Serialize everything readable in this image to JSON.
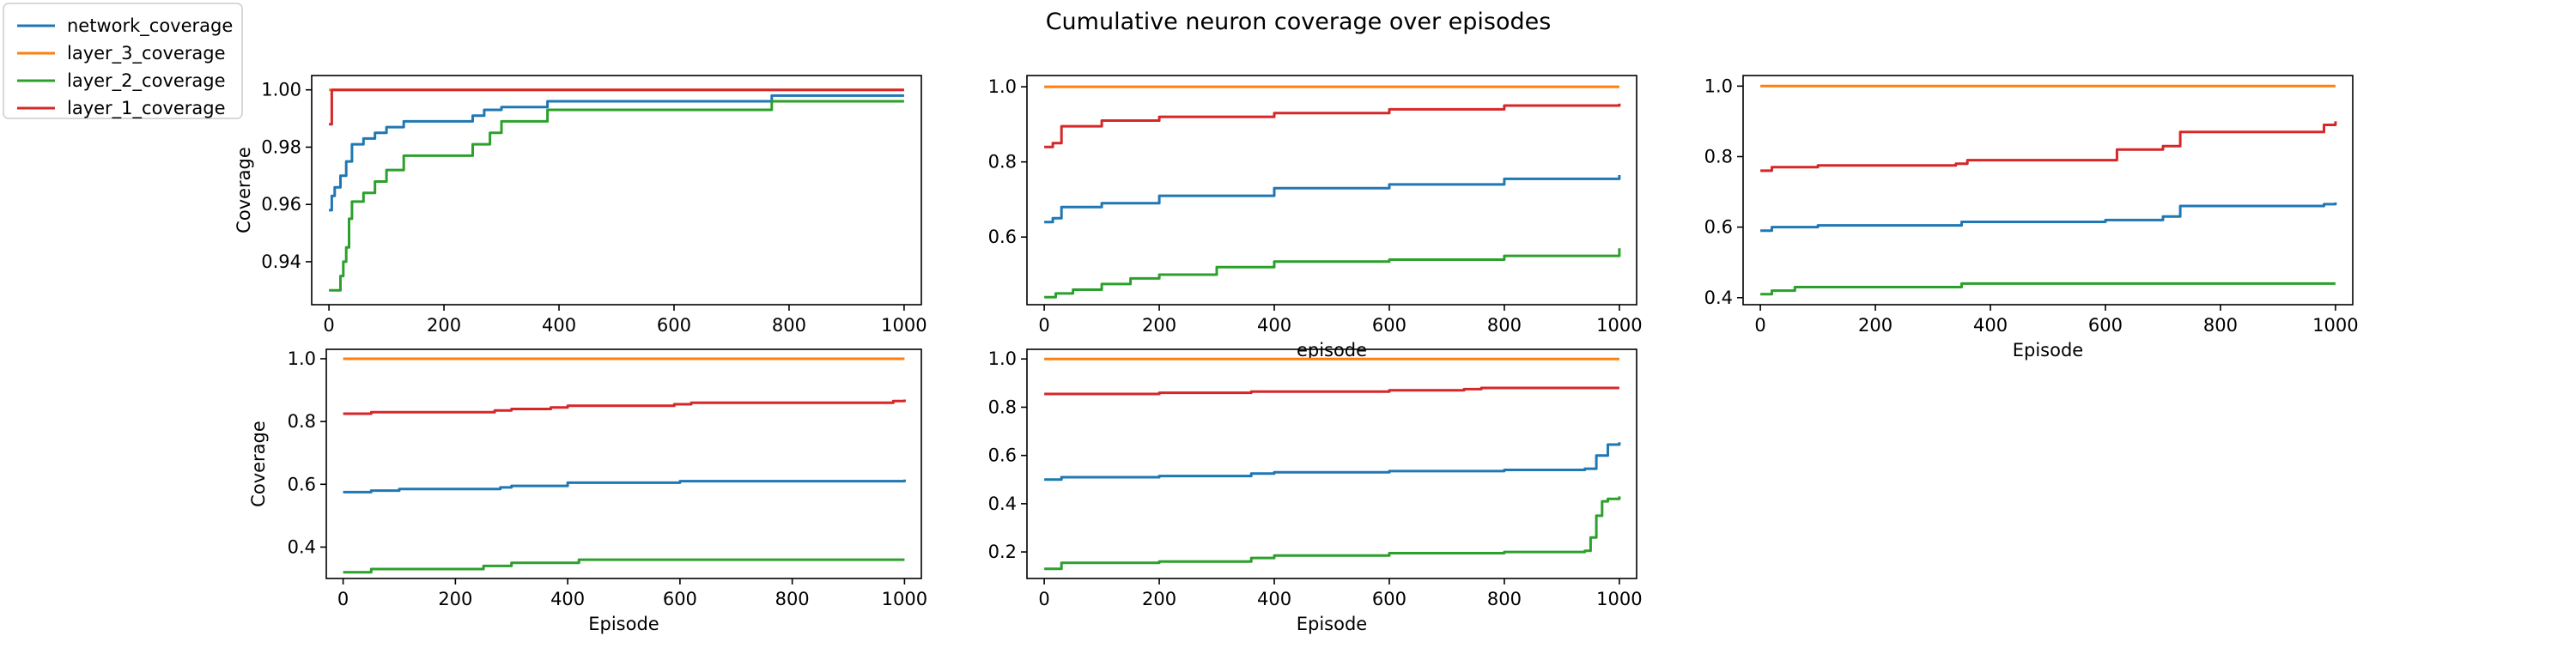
{
  "figure": {
    "title": "Cumulative neuron coverage over episodes"
  },
  "legend": {
    "placement": "top-left",
    "items": [
      {
        "label": "network_coverage",
        "color": "#1f77b4"
      },
      {
        "label": "layer_3_coverage",
        "color": "#ff7f0e"
      },
      {
        "label": "layer_2_coverage",
        "color": "#2ca02c"
      },
      {
        "label": "layer_1_coverage",
        "color": "#d62728"
      }
    ]
  },
  "chart_data": [
    {
      "type": "line",
      "xlabel": "",
      "ylabel": "Coverage",
      "xlim": [
        -30,
        1030
      ],
      "ylim": [
        0.925,
        1.005
      ],
      "xticks": [
        0,
        200,
        400,
        600,
        800,
        1000
      ],
      "yticks": [
        0.94,
        0.96,
        0.98,
        1.0
      ],
      "ytick_labels": [
        "0.94",
        "0.96",
        "0.98",
        "1.00"
      ],
      "series": [
        {
          "name": "network_coverage",
          "color": "#1f77b4",
          "x": [
            0,
            5,
            10,
            20,
            30,
            40,
            60,
            80,
            100,
            130,
            150,
            200,
            250,
            270,
            300,
            380,
            500,
            770,
            1000
          ],
          "y": [
            0.958,
            0.963,
            0.966,
            0.97,
            0.975,
            0.981,
            0.983,
            0.985,
            0.987,
            0.989,
            0.989,
            0.989,
            0.991,
            0.993,
            0.994,
            0.996,
            0.996,
            0.998,
            0.998
          ]
        },
        {
          "name": "layer_3_coverage",
          "color": "#ff7f0e",
          "x": [
            0,
            1000
          ],
          "y": [
            1.0,
            1.0
          ]
        },
        {
          "name": "layer_2_coverage",
          "color": "#2ca02c",
          "x": [
            0,
            10,
            20,
            25,
            30,
            35,
            40,
            60,
            80,
            100,
            130,
            200,
            250,
            280,
            300,
            380,
            770,
            1000
          ],
          "y": [
            0.93,
            0.93,
            0.935,
            0.94,
            0.945,
            0.955,
            0.961,
            0.964,
            0.968,
            0.972,
            0.977,
            0.977,
            0.981,
            0.985,
            0.989,
            0.993,
            0.996,
            0.996
          ]
        },
        {
          "name": "layer_1_coverage",
          "color": "#d62728",
          "x": [
            0,
            5,
            1000
          ],
          "y": [
            0.988,
            1.0,
            1.0
          ]
        }
      ]
    },
    {
      "type": "line",
      "xlabel": "episode",
      "ylabel": "",
      "xlim": [
        -30,
        1030
      ],
      "ylim": [
        0.42,
        1.03
      ],
      "xticks": [
        0,
        200,
        400,
        600,
        800,
        1000
      ],
      "yticks": [
        0.6,
        0.8,
        1.0
      ],
      "ytick_labels": [
        "0.6",
        "0.8",
        "1.0"
      ],
      "series": [
        {
          "name": "network_coverage",
          "color": "#1f77b4",
          "x": [
            0,
            15,
            30,
            100,
            200,
            400,
            600,
            800,
            1000
          ],
          "y": [
            0.64,
            0.65,
            0.68,
            0.69,
            0.71,
            0.73,
            0.74,
            0.755,
            0.765
          ]
        },
        {
          "name": "layer_3_coverage",
          "color": "#ff7f0e",
          "x": [
            0,
            1000
          ],
          "y": [
            1.0,
            1.0
          ]
        },
        {
          "name": "layer_2_coverage",
          "color": "#2ca02c",
          "x": [
            0,
            20,
            50,
            100,
            150,
            200,
            300,
            400,
            600,
            800,
            1000
          ],
          "y": [
            0.44,
            0.45,
            0.46,
            0.475,
            0.49,
            0.5,
            0.52,
            0.535,
            0.54,
            0.55,
            0.57
          ]
        },
        {
          "name": "layer_1_coverage",
          "color": "#d62728",
          "x": [
            0,
            15,
            30,
            100,
            200,
            400,
            600,
            800,
            1000
          ],
          "y": [
            0.84,
            0.85,
            0.895,
            0.91,
            0.92,
            0.93,
            0.94,
            0.95,
            0.955
          ]
        }
      ]
    },
    {
      "type": "line",
      "xlabel": "Episode",
      "ylabel": "",
      "xlim": [
        -30,
        1030
      ],
      "ylim": [
        0.38,
        1.03
      ],
      "xticks": [
        0,
        200,
        400,
        600,
        800,
        1000
      ],
      "yticks": [
        0.4,
        0.6,
        0.8,
        1.0
      ],
      "ytick_labels": [
        "0.4",
        "0.6",
        "0.8",
        "1.0"
      ],
      "series": [
        {
          "name": "network_coverage",
          "color": "#1f77b4",
          "x": [
            0,
            20,
            100,
            350,
            600,
            700,
            730,
            950,
            980,
            1000
          ],
          "y": [
            0.59,
            0.6,
            0.605,
            0.615,
            0.62,
            0.63,
            0.66,
            0.66,
            0.665,
            0.67
          ]
        },
        {
          "name": "layer_3_coverage",
          "color": "#ff7f0e",
          "x": [
            0,
            1000
          ],
          "y": [
            1.0,
            1.0
          ]
        },
        {
          "name": "layer_2_coverage",
          "color": "#2ca02c",
          "x": [
            0,
            20,
            60,
            200,
            350,
            400,
            1000
          ],
          "y": [
            0.41,
            0.42,
            0.43,
            0.43,
            0.44,
            0.44,
            0.44
          ]
        },
        {
          "name": "layer_1_coverage",
          "color": "#d62728",
          "x": [
            0,
            20,
            100,
            340,
            360,
            600,
            620,
            700,
            730,
            960,
            980,
            1000
          ],
          "y": [
            0.76,
            0.77,
            0.775,
            0.78,
            0.79,
            0.79,
            0.82,
            0.83,
            0.87,
            0.87,
            0.89,
            0.9
          ]
        }
      ]
    },
    {
      "type": "line",
      "xlabel": "Episode",
      "ylabel": "Coverage",
      "xlim": [
        -30,
        1030
      ],
      "ylim": [
        0.3,
        1.03
      ],
      "xticks": [
        0,
        200,
        400,
        600,
        800,
        1000
      ],
      "yticks": [
        0.4,
        0.6,
        0.8,
        1.0
      ],
      "ytick_labels": [
        "0.4",
        "0.6",
        "0.8",
        "1.0"
      ],
      "series": [
        {
          "name": "network_coverage",
          "color": "#1f77b4",
          "x": [
            0,
            50,
            100,
            280,
            300,
            400,
            600,
            800,
            1000
          ],
          "y": [
            0.575,
            0.58,
            0.585,
            0.59,
            0.595,
            0.605,
            0.61,
            0.61,
            0.615
          ]
        },
        {
          "name": "layer_3_coverage",
          "color": "#ff7f0e",
          "x": [
            0,
            1000
          ],
          "y": [
            1.0,
            1.0
          ]
        },
        {
          "name": "layer_2_coverage",
          "color": "#2ca02c",
          "x": [
            0,
            50,
            250,
            300,
            420,
            1000
          ],
          "y": [
            0.32,
            0.33,
            0.34,
            0.35,
            0.36,
            0.36
          ]
        },
        {
          "name": "layer_1_coverage",
          "color": "#d62728",
          "x": [
            0,
            50,
            270,
            300,
            370,
            400,
            590,
            620,
            980,
            1000
          ],
          "y": [
            0.825,
            0.83,
            0.835,
            0.84,
            0.845,
            0.85,
            0.855,
            0.86,
            0.865,
            0.87
          ]
        }
      ]
    },
    {
      "type": "line",
      "xlabel": "Episode",
      "ylabel": "",
      "xlim": [
        -30,
        1030
      ],
      "ylim": [
        0.09,
        1.04
      ],
      "xticks": [
        0,
        200,
        400,
        600,
        800,
        1000
      ],
      "yticks": [
        0.2,
        0.4,
        0.6,
        0.8,
        1.0
      ],
      "ytick_labels": [
        "0.2",
        "0.4",
        "0.6",
        "0.8",
        "1.0"
      ],
      "series": [
        {
          "name": "network_coverage",
          "color": "#1f77b4",
          "x": [
            0,
            30,
            200,
            360,
            400,
            600,
            800,
            940,
            960,
            980,
            1000
          ],
          "y": [
            0.5,
            0.51,
            0.515,
            0.525,
            0.53,
            0.535,
            0.54,
            0.545,
            0.6,
            0.645,
            0.655
          ]
        },
        {
          "name": "layer_3_coverage",
          "color": "#ff7f0e",
          "x": [
            0,
            1000
          ],
          "y": [
            1.0,
            1.0
          ]
        },
        {
          "name": "layer_2_coverage",
          "color": "#2ca02c",
          "x": [
            0,
            20,
            30,
            200,
            360,
            400,
            600,
            800,
            940,
            950,
            960,
            970,
            980,
            1000
          ],
          "y": [
            0.13,
            0.13,
            0.155,
            0.16,
            0.175,
            0.185,
            0.195,
            0.2,
            0.205,
            0.26,
            0.35,
            0.41,
            0.42,
            0.43
          ]
        },
        {
          "name": "layer_1_coverage",
          "color": "#d62728",
          "x": [
            0,
            200,
            360,
            600,
            730,
            760,
            1000
          ],
          "y": [
            0.855,
            0.86,
            0.865,
            0.87,
            0.875,
            0.88,
            0.88
          ]
        }
      ]
    }
  ]
}
